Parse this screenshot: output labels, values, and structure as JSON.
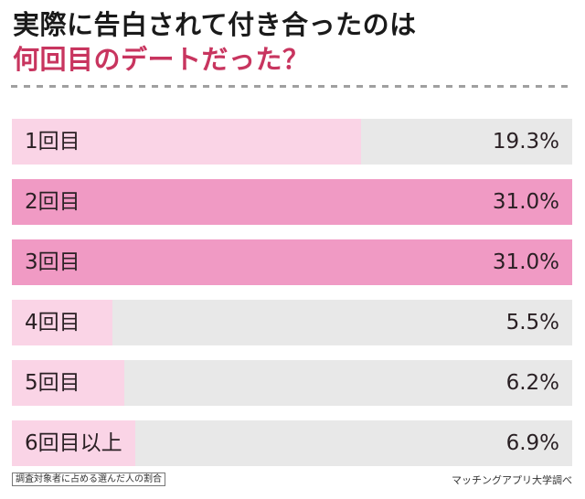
{
  "title": {
    "line1": "実際に告白されて付き合ったのは",
    "line2": "何回目のデートだった？"
  },
  "colors": {
    "title_accent": "#c8355f",
    "fill_light": "#fad4e6",
    "fill_highlight": "#f09ac4",
    "track": "#e8e8e8"
  },
  "rows": [
    {
      "label": "1回目",
      "value": "19.3%",
      "fill_pct": 62.3
    },
    {
      "label": "2回目",
      "value": "31.0%",
      "fill_pct": 100
    },
    {
      "label": "3回目",
      "value": "31.0%",
      "fill_pct": 100
    },
    {
      "label": "4回目",
      "value": "5.5%",
      "fill_pct": 17.9
    },
    {
      "label": "5回目",
      "value": "6.2%",
      "fill_pct": 20.1
    },
    {
      "label": "6回目以上",
      "value": "6.9%",
      "fill_pct": 22.0
    }
  ],
  "footer": {
    "note": "調査対象者に占める選んだ人の割合",
    "source": "マッチングアプリ大学調べ"
  },
  "chart_data": {
    "type": "bar",
    "orientation": "horizontal",
    "title": "実際に告白されて付き合ったのは何回目のデートだった？",
    "categories": [
      "1回目",
      "2回目",
      "3回目",
      "4回目",
      "5回目",
      "6回目以上"
    ],
    "values": [
      19.3,
      31.0,
      31.0,
      5.5,
      6.2,
      6.9
    ],
    "unit": "%",
    "xlabel": "",
    "ylabel": "",
    "highlighted": [
      "2回目",
      "3回目"
    ],
    "note": "調査対象者に占める選んだ人の割合",
    "source": "マッチングアプリ大学調べ",
    "grid": false,
    "legend": "none"
  }
}
